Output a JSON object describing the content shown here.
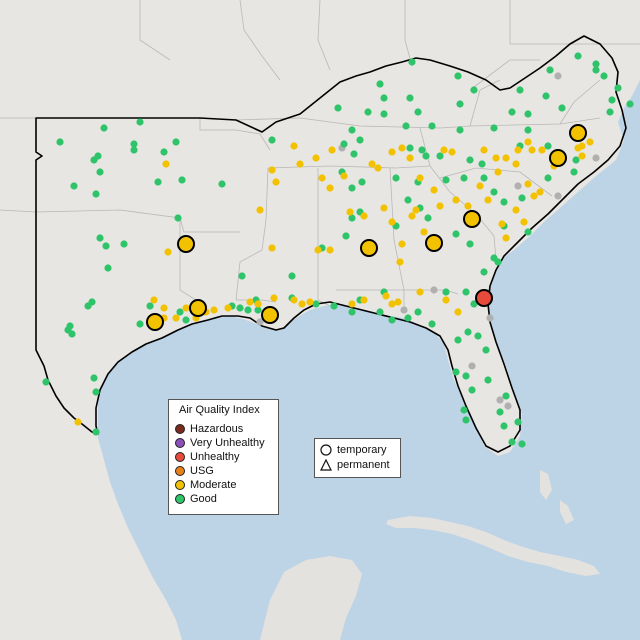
{
  "colors": {
    "ocean": "#bdd3e6",
    "land": "#ece9e4",
    "land_far": "#e2e0dc",
    "border": "#b8b8b8",
    "outline": "#000000",
    "good": "#2fc46a",
    "moderate": "#f2c200",
    "usg": "#e8801a",
    "unhealthy": "#e64a3b",
    "very_unhealthy": "#8b4fb8",
    "hazardous": "#7a2a1e",
    "inactive": "#b0b0b0"
  },
  "legend": {
    "title": "Air Quality Index",
    "categories": [
      {
        "label": "Hazardous",
        "color": "#7a2a1e"
      },
      {
        "label": "Very Unhealthy",
        "color": "#8b4fb8"
      },
      {
        "label": "Unhealthy",
        "color": "#e64a3b"
      },
      {
        "label": "USG",
        "color": "#e8801a"
      },
      {
        "label": "Moderate",
        "color": "#f2c200"
      },
      {
        "label": "Good",
        "color": "#2fc46a"
      }
    ]
  },
  "type_legend": {
    "temporary": "temporary",
    "permanent": "permanent"
  },
  "monitors": {
    "large": [
      {
        "category": "unhealthy"
      },
      {
        "category": "moderate"
      },
      {
        "category": "moderate"
      },
      {
        "category": "moderate"
      },
      {
        "category": "moderate"
      },
      {
        "category": "moderate"
      },
      {
        "category": "moderate"
      },
      {
        "category": "moderate"
      },
      {
        "category": "moderate"
      },
      {
        "category": "moderate"
      }
    ],
    "small_good": 150,
    "small_moderate": 90,
    "small_inactive": 12
  }
}
